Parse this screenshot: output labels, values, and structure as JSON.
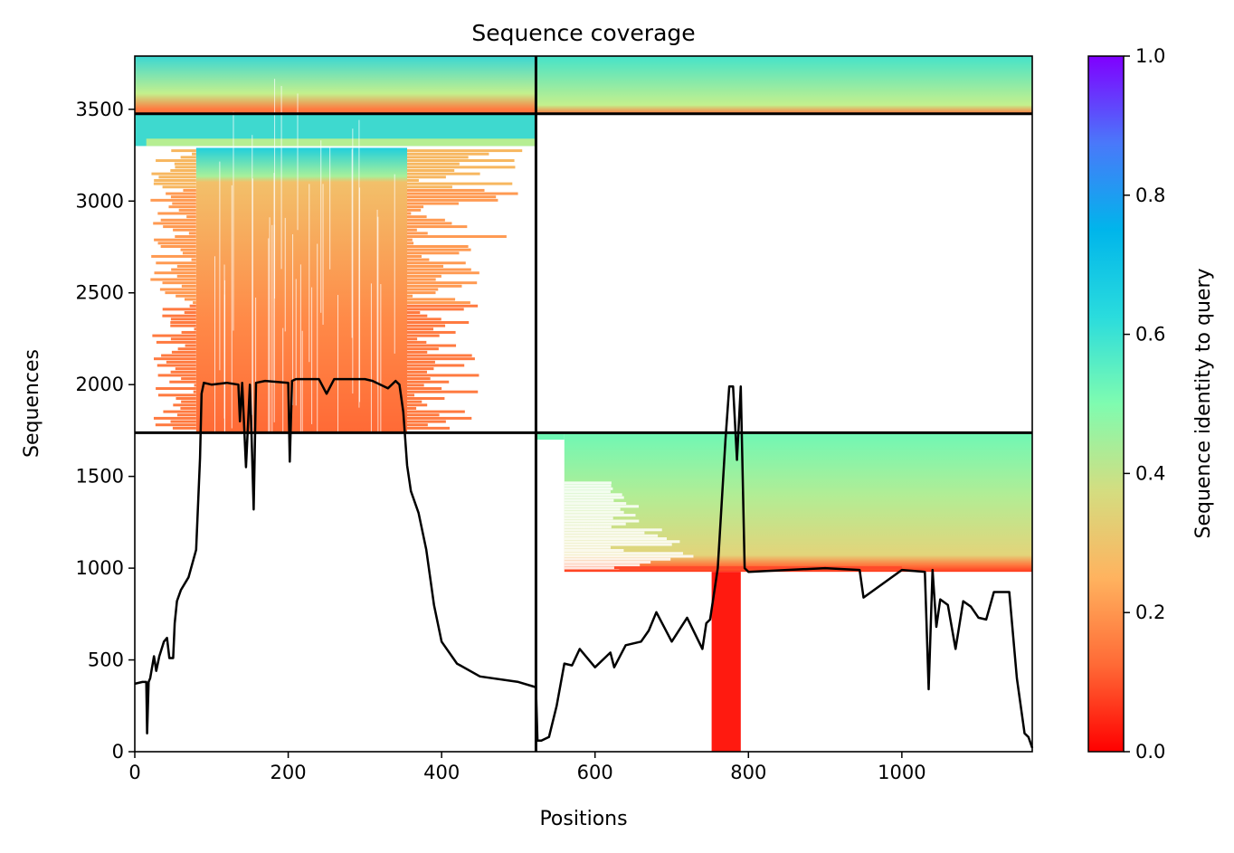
{
  "chart_data": {
    "type": "heatmap",
    "title": "Sequence coverage",
    "xlabel": "Positions",
    "ylabel": "Sequences",
    "xlim": [
      0,
      1170
    ],
    "ylim": [
      0,
      3790
    ],
    "xticks": [
      0,
      200,
      400,
      600,
      800,
      1000
    ],
    "yticks": [
      0,
      500,
      1000,
      1500,
      2000,
      2500,
      3000,
      3500
    ],
    "grid": false,
    "colorbar": {
      "label": "Sequence identity to query",
      "range": [
        0,
        1
      ],
      "ticks": [
        "0.0",
        "0.2",
        "0.4",
        "0.6",
        "0.8",
        "1.0"
      ],
      "colormap": "rainbow_r",
      "colors": [
        "#ff0000",
        "#ff6a36",
        "#ffb35f",
        "#d4dd80",
        "#7ffcb0",
        "#2adcdd",
        "#00b5eb",
        "#4a78fa",
        "#8000ff"
      ]
    },
    "chain_boundaries": {
      "x": [
        523
      ],
      "y": [
        1738,
        3476
      ]
    },
    "blocks": [
      {
        "x": [
          0,
          523
        ],
        "y": [
          3476,
          3790
        ],
        "identity_range": [
          0.2,
          0.65
        ],
        "note": ""
      },
      {
        "x": [
          523,
          1170
        ],
        "y": [
          3476,
          3790
        ],
        "identity_range": [
          0.2,
          0.6
        ],
        "note": ""
      },
      {
        "x": [
          15,
          523
        ],
        "y": [
          1738,
          3476
        ],
        "identity_range": [
          0.15,
          0.65
        ],
        "note": ""
      },
      {
        "x": [
          523,
          1170
        ],
        "y": [
          1738,
          3476
        ],
        "identity_range": null,
        "note": ""
      },
      {
        "x": [
          523,
          1170
        ],
        "y": [
          980,
          1738
        ],
        "identity_range": [
          0.1,
          0.5
        ],
        "note": ""
      },
      {
        "x": [
          745,
          790
        ],
        "y": [
          0,
          980
        ],
        "identity_range": [
          0.0,
          0.02
        ],
        "note": ""
      }
    ],
    "coverage_line": {
      "name": "",
      "x": [
        0,
        10,
        15,
        16,
        18,
        20,
        25,
        28,
        32,
        38,
        42,
        45,
        50,
        52,
        55,
        60,
        70,
        80,
        85,
        87,
        90,
        100,
        120,
        135,
        137,
        140,
        145,
        150,
        152,
        155,
        158,
        170,
        200,
        202,
        205,
        210,
        240,
        250,
        260,
        300,
        310,
        330,
        340,
        345,
        350,
        355,
        360,
        370,
        380,
        390,
        400,
        420,
        450,
        500,
        520,
        523,
        525,
        530,
        540,
        550,
        560,
        570,
        580,
        600,
        620,
        625,
        640,
        660,
        670,
        680,
        700,
        720,
        740,
        745,
        750,
        760,
        770,
        775,
        780,
        785,
        790,
        795,
        800,
        850,
        900,
        945,
        950,
        1000,
        1030,
        1035,
        1040,
        1045,
        1050,
        1060,
        1070,
        1080,
        1090,
        1100,
        1110,
        1120,
        1140,
        1150,
        1160,
        1165,
        1170
      ],
      "y": [
        370,
        380,
        380,
        100,
        380,
        400,
        520,
        440,
        520,
        600,
        620,
        510,
        510,
        700,
        820,
        880,
        950,
        1100,
        1600,
        1950,
        2010,
        2000,
        2010,
        2000,
        1800,
        2010,
        1550,
        2000,
        1750,
        1320,
        2010,
        2020,
        2010,
        1580,
        2020,
        2030,
        2030,
        1950,
        2030,
        2030,
        2020,
        1980,
        2020,
        2000,
        1850,
        1560,
        1420,
        1300,
        1100,
        800,
        600,
        480,
        410,
        380,
        355,
        350,
        60,
        60,
        80,
        250,
        480,
        470,
        560,
        460,
        540,
        460,
        580,
        600,
        660,
        760,
        600,
        730,
        560,
        700,
        720,
        1000,
        1700,
        1990,
        1990,
        1590,
        1990,
        1000,
        980,
        990,
        1000,
        990,
        840,
        990,
        980,
        340,
        990,
        680,
        830,
        800,
        560,
        820,
        790,
        730,
        720,
        870,
        870,
        400,
        100,
        80,
        20
      ]
    }
  }
}
